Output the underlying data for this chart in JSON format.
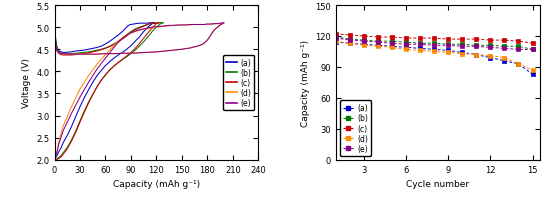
{
  "colors": {
    "a": "#0000CC",
    "b": "#007700",
    "c": "#CC0000",
    "d": "#FF8C00",
    "e": "#8B008B"
  },
  "left_chart": {
    "xlabel": "Capacity (mAh g⁻¹)",
    "ylabel": "Voltage (V)",
    "xlim": [
      0,
      240
    ],
    "ylim": [
      2.0,
      5.5
    ],
    "xticks": [
      0,
      30,
      60,
      90,
      120,
      150,
      180,
      210,
      240
    ],
    "yticks": [
      2.0,
      2.5,
      3.0,
      3.5,
      4.0,
      4.5,
      5.0,
      5.5
    ],
    "curves": {
      "a": {
        "x": [
          0,
          1,
          2,
          3,
          4,
          5,
          6,
          8,
          10,
          12,
          15,
          18,
          20,
          25,
          30,
          35,
          40,
          45,
          50,
          55,
          60,
          65,
          70,
          75,
          80,
          85,
          88,
          90,
          93,
          96,
          100,
          105,
          108,
          110,
          112,
          115,
          118
        ],
        "y": [
          5.0,
          4.8,
          4.65,
          4.55,
          4.5,
          4.47,
          4.45,
          4.44,
          4.43,
          4.43,
          4.43,
          4.44,
          4.44,
          4.46,
          4.47,
          4.48,
          4.5,
          4.52,
          4.54,
          4.57,
          4.62,
          4.68,
          4.75,
          4.82,
          4.9,
          5.0,
          5.05,
          5.06,
          5.07,
          5.08,
          5.09,
          5.09,
          5.09,
          5.09,
          5.1,
          5.1,
          5.1
        ]
      },
      "a_dis": {
        "x": [
          118,
          115,
          110,
          105,
          100,
          95,
          90,
          85,
          80,
          75,
          70,
          65,
          60,
          55,
          50,
          45,
          40,
          35,
          30,
          25,
          20,
          15,
          10,
          8,
          5,
          3,
          2,
          1,
          0
        ],
        "y": [
          5.1,
          5.08,
          5.0,
          4.9,
          4.78,
          4.68,
          4.58,
          4.5,
          4.43,
          4.37,
          4.3,
          4.22,
          4.13,
          4.02,
          3.9,
          3.75,
          3.58,
          3.4,
          3.2,
          2.98,
          2.75,
          2.55,
          2.38,
          2.28,
          2.18,
          2.1,
          2.07,
          2.03,
          2.0
        ]
      },
      "b": {
        "x": [
          0,
          1,
          2,
          3,
          4,
          5,
          6,
          8,
          10,
          12,
          15,
          18,
          20,
          25,
          30,
          35,
          40,
          45,
          50,
          55,
          60,
          65,
          70,
          75,
          80,
          85,
          90,
          95,
          100,
          105,
          110,
          113,
          115,
          117,
          120,
          123,
          126,
          128
        ],
        "y": [
          5.0,
          4.75,
          4.6,
          4.5,
          4.46,
          4.44,
          4.42,
          4.41,
          4.4,
          4.4,
          4.4,
          4.4,
          4.4,
          4.41,
          4.42,
          4.43,
          4.44,
          4.46,
          4.48,
          4.5,
          4.53,
          4.57,
          4.62,
          4.68,
          4.75,
          4.83,
          4.9,
          4.96,
          5.0,
          5.03,
          5.06,
          5.08,
          5.08,
          5.09,
          5.09,
          5.1,
          5.1,
          5.1
        ]
      },
      "b_dis": {
        "x": [
          128,
          125,
          120,
          115,
          110,
          105,
          100,
          95,
          90,
          85,
          80,
          75,
          70,
          65,
          60,
          55,
          50,
          45,
          40,
          35,
          30,
          25,
          20,
          15,
          10,
          8,
          5,
          3,
          2,
          1,
          0
        ],
        "y": [
          5.1,
          5.08,
          5.0,
          4.9,
          4.78,
          4.67,
          4.57,
          4.48,
          4.4,
          4.33,
          4.27,
          4.2,
          4.12,
          4.03,
          3.92,
          3.8,
          3.65,
          3.48,
          3.3,
          3.1,
          2.88,
          2.65,
          2.45,
          2.28,
          2.15,
          2.1,
          2.05,
          2.02,
          2.01,
          2.0,
          2.0
        ]
      },
      "c": {
        "x": [
          0,
          1,
          2,
          3,
          4,
          5,
          6,
          8,
          10,
          12,
          15,
          18,
          20,
          25,
          30,
          35,
          40,
          45,
          50,
          55,
          60,
          65,
          70,
          75,
          80,
          85,
          90,
          95,
          100,
          105,
          108,
          110,
          112,
          115,
          118,
          120,
          122,
          123
        ],
        "y": [
          5.0,
          4.7,
          4.55,
          4.47,
          4.43,
          4.41,
          4.39,
          4.38,
          4.37,
          4.37,
          4.37,
          4.37,
          4.37,
          4.38,
          4.39,
          4.4,
          4.42,
          4.44,
          4.46,
          4.49,
          4.52,
          4.56,
          4.61,
          4.66,
          4.73,
          4.8,
          4.88,
          4.94,
          4.98,
          5.02,
          5.05,
          5.07,
          5.08,
          5.08,
          5.09,
          5.09,
          5.1,
          5.1
        ]
      },
      "c_dis": {
        "x": [
          123,
          120,
          115,
          110,
          105,
          100,
          95,
          90,
          85,
          80,
          75,
          70,
          65,
          60,
          55,
          50,
          45,
          40,
          35,
          30,
          25,
          20,
          15,
          10,
          8,
          5,
          3,
          2,
          1,
          0
        ],
        "y": [
          5.1,
          5.08,
          4.98,
          4.87,
          4.75,
          4.63,
          4.52,
          4.43,
          4.35,
          4.27,
          4.2,
          4.12,
          4.03,
          3.92,
          3.8,
          3.65,
          3.47,
          3.28,
          3.07,
          2.85,
          2.62,
          2.42,
          2.25,
          2.12,
          2.07,
          2.03,
          2.01,
          2.0,
          2.0,
          2.0
        ]
      },
      "d": {
        "x": [
          0,
          1,
          2,
          3,
          5,
          8,
          10,
          15,
          20,
          30,
          40,
          50,
          60,
          70,
          80,
          90,
          100,
          110,
          120,
          130,
          140,
          150,
          160,
          170,
          175,
          178,
          180,
          182,
          184,
          186,
          188,
          190,
          192,
          194,
          195,
          196,
          197,
          198,
          199,
          200
        ],
        "y": [
          5.0,
          4.6,
          4.5,
          4.46,
          4.43,
          4.41,
          4.4,
          4.39,
          4.39,
          4.39,
          4.39,
          4.39,
          4.4,
          4.4,
          4.41,
          4.41,
          4.42,
          4.43,
          4.44,
          4.46,
          4.48,
          4.5,
          4.53,
          4.58,
          4.62,
          4.67,
          4.71,
          4.76,
          4.82,
          4.88,
          4.93,
          4.97,
          5.0,
          5.03,
          5.05,
          5.06,
          5.07,
          5.08,
          5.09,
          5.1
        ]
      },
      "d_dis": {
        "x": [
          200,
          198,
          196,
          194,
          192,
          190,
          188,
          185,
          182,
          180,
          178,
          175,
          172,
          168,
          164,
          160,
          155,
          150,
          145,
          140,
          135,
          130,
          125,
          120,
          115,
          110,
          105,
          100,
          95,
          90,
          85,
          80,
          75,
          70,
          60,
          50,
          40,
          30,
          20,
          10,
          5,
          3,
          1,
          0
        ],
        "y": [
          5.1,
          5.09,
          5.09,
          5.08,
          5.08,
          5.08,
          5.07,
          5.07,
          5.07,
          5.07,
          5.06,
          5.06,
          5.06,
          5.06,
          5.06,
          5.05,
          5.05,
          5.05,
          5.04,
          5.04,
          5.03,
          5.02,
          5.01,
          5.0,
          4.98,
          4.97,
          4.95,
          4.93,
          4.9,
          4.87,
          4.82,
          4.76,
          4.68,
          4.58,
          4.38,
          4.16,
          3.9,
          3.6,
          3.2,
          2.75,
          2.4,
          2.2,
          2.05,
          2.0
        ]
      },
      "e": {
        "x": [
          0,
          1,
          2,
          3,
          5,
          8,
          10,
          15,
          20,
          30,
          40,
          50,
          60,
          70,
          80,
          90,
          100,
          110,
          120,
          130,
          140,
          150,
          160,
          170,
          175,
          178,
          180,
          182,
          184,
          186,
          188,
          190,
          192,
          194,
          195,
          196,
          197,
          198,
          199
        ],
        "y": [
          5.0,
          4.6,
          4.5,
          4.46,
          4.43,
          4.41,
          4.4,
          4.39,
          4.39,
          4.39,
          4.39,
          4.39,
          4.4,
          4.4,
          4.41,
          4.41,
          4.42,
          4.43,
          4.44,
          4.46,
          4.48,
          4.5,
          4.53,
          4.58,
          4.62,
          4.67,
          4.71,
          4.76,
          4.82,
          4.88,
          4.93,
          4.97,
          5.0,
          5.03,
          5.05,
          5.06,
          5.07,
          5.08,
          5.1
        ]
      },
      "e_dis": {
        "x": [
          199,
          197,
          195,
          193,
          191,
          189,
          187,
          185,
          183,
          181,
          179,
          177,
          175,
          172,
          168,
          164,
          160,
          155,
          150,
          145,
          140,
          135,
          130,
          125,
          120,
          115,
          110,
          105,
          100,
          95,
          90,
          85,
          80,
          75,
          70,
          60,
          50,
          40,
          30,
          20,
          10,
          5,
          3,
          1,
          0
        ],
        "y": [
          5.1,
          5.09,
          5.09,
          5.08,
          5.08,
          5.08,
          5.08,
          5.07,
          5.07,
          5.07,
          5.07,
          5.06,
          5.06,
          5.06,
          5.06,
          5.06,
          5.06,
          5.05,
          5.05,
          5.05,
          5.04,
          5.04,
          5.03,
          5.02,
          5.01,
          5.0,
          4.98,
          4.96,
          4.94,
          4.91,
          4.87,
          4.82,
          4.75,
          4.66,
          4.54,
          4.3,
          4.05,
          3.75,
          3.42,
          3.05,
          2.65,
          2.35,
          2.18,
          2.05,
          2.0
        ]
      }
    }
  },
  "right_chart": {
    "xlabel": "Cycle number",
    "ylabel": "Capacity (mAh g⁻¹)",
    "xlim": [
      1,
      15.5
    ],
    "ylim": [
      0,
      150
    ],
    "xticks": [
      3,
      6,
      9,
      12,
      15
    ],
    "yticks": [
      0,
      30,
      60,
      90,
      120,
      150
    ],
    "data": {
      "a": {
        "cycles": [
          1,
          2,
          3,
          4,
          5,
          6,
          7,
          8,
          9,
          10,
          11,
          12,
          13,
          14,
          15
        ],
        "capacity": [
          114,
          113,
          112,
          111,
          110,
          109,
          108,
          107,
          106,
          104,
          102,
          99,
          96,
          93,
          83
        ]
      },
      "b": {
        "cycles": [
          1,
          2,
          3,
          4,
          5,
          6,
          7,
          8,
          9,
          10,
          11,
          12,
          13,
          14,
          15
        ],
        "capacity": [
          119,
          117,
          116,
          115,
          115,
          114,
          113,
          113,
          112,
          112,
          111,
          111,
          110,
          110,
          107
        ]
      },
      "c": {
        "cycles": [
          1,
          2,
          3,
          4,
          5,
          6,
          7,
          8,
          9,
          10,
          11,
          12,
          13,
          14,
          15
        ],
        "capacity": [
          122,
          121,
          120,
          119,
          119,
          118,
          118,
          118,
          117,
          117,
          117,
          116,
          116,
          115,
          113
        ]
      },
      "d": {
        "cycles": [
          1,
          2,
          3,
          4,
          5,
          6,
          7,
          8,
          9,
          10,
          11,
          12,
          13,
          14,
          15
        ],
        "capacity": [
          115,
          113,
          111,
          110,
          109,
          107,
          106,
          105,
          104,
          103,
          102,
          101,
          99,
          93,
          87
        ]
      },
      "e": {
        "cycles": [
          1,
          2,
          3,
          4,
          5,
          6,
          7,
          8,
          9,
          10,
          11,
          12,
          13,
          14,
          15
        ],
        "capacity": [
          118,
          116,
          115,
          114,
          113,
          112,
          112,
          111,
          111,
          110,
          110,
          109,
          108,
          107,
          107
        ]
      }
    }
  }
}
